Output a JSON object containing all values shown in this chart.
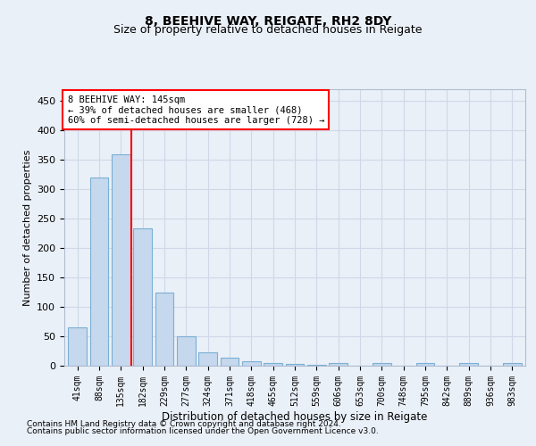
{
  "title": "8, BEEHIVE WAY, REIGATE, RH2 8DY",
  "subtitle": "Size of property relative to detached houses in Reigate",
  "xlabel": "Distribution of detached houses by size in Reigate",
  "ylabel": "Number of detached properties",
  "categories": [
    "41sqm",
    "88sqm",
    "135sqm",
    "182sqm",
    "229sqm",
    "277sqm",
    "324sqm",
    "371sqm",
    "418sqm",
    "465sqm",
    "512sqm",
    "559sqm",
    "606sqm",
    "653sqm",
    "700sqm",
    "748sqm",
    "795sqm",
    "842sqm",
    "889sqm",
    "936sqm",
    "983sqm"
  ],
  "values": [
    65,
    320,
    360,
    233,
    125,
    50,
    23,
    13,
    8,
    5,
    3,
    2,
    4,
    0,
    4,
    0,
    4,
    0,
    4,
    0,
    4
  ],
  "bar_color": "#c5d8ed",
  "bar_edge_color": "#7bafd4",
  "grid_color": "#d0d8e8",
  "bg_color": "#eaf0f8",
  "red_line_x": 2.5,
  "annotation_line1": "8 BEEHIVE WAY: 145sqm",
  "annotation_line2": "← 39% of detached houses are smaller (468)",
  "annotation_line3": "60% of semi-detached houses are larger (728) →",
  "annotation_box_color": "white",
  "annotation_box_edge": "red",
  "ylim": [
    0,
    470
  ],
  "yticks": [
    0,
    50,
    100,
    150,
    200,
    250,
    300,
    350,
    400,
    450
  ],
  "footer1": "Contains HM Land Registry data © Crown copyright and database right 2024.",
  "footer2": "Contains public sector information licensed under the Open Government Licence v3.0."
}
